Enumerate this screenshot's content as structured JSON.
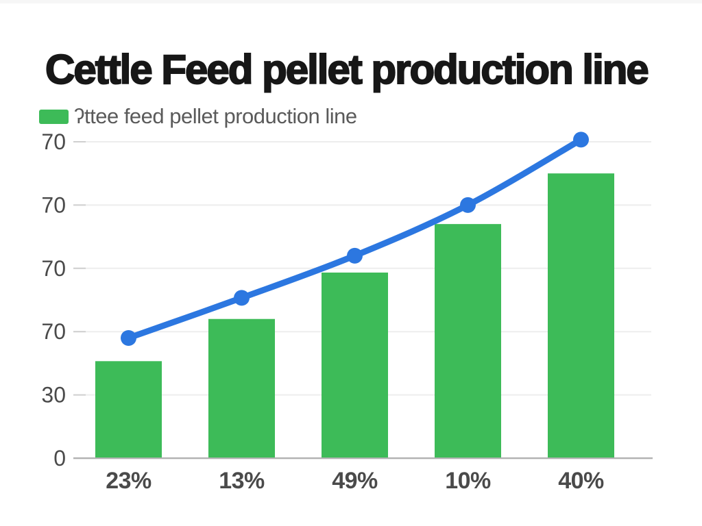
{
  "header": {
    "title": "Cettle Feed pellet production line"
  },
  "chart_data": {
    "type": "bar",
    "title": "Cettle Feed pellet production line",
    "categories": [
      "23%",
      "13%",
      "49%",
      "10%",
      "40%"
    ],
    "series": [
      {
        "name": "ʔttee feed pellet production line",
        "type": "bar",
        "color": "#3dbb58",
        "values": [
          46,
          66,
          88,
          111,
          135
        ]
      },
      {
        "name": "",
        "type": "line",
        "color": "#2c77e0",
        "marker": "circle",
        "values": [
          57,
          76,
          96,
          120,
          151
        ]
      }
    ],
    "xlabel": "",
    "ylabel": "",
    "ylim": [
      0,
      150
    ],
    "yticks": {
      "positions": [
        0,
        30,
        60,
        90,
        120,
        150
      ],
      "labels": [
        "0",
        "30",
        "70",
        "70",
        "70",
        "70"
      ]
    },
    "grid": true,
    "legend_position": "top-left"
  },
  "colors": {
    "bar_green": "#3dbb58",
    "line_blue": "#2c77e0",
    "grid": "#ededed",
    "axis_baseline": "#b3b3b3",
    "tick": "#cfcfcf",
    "title_text": "#171717",
    "y_label_text": "#4a4a4a",
    "x_label_text": "#4a4a4a",
    "legend_text": "#5a5a5a",
    "background": "#ffffff"
  }
}
